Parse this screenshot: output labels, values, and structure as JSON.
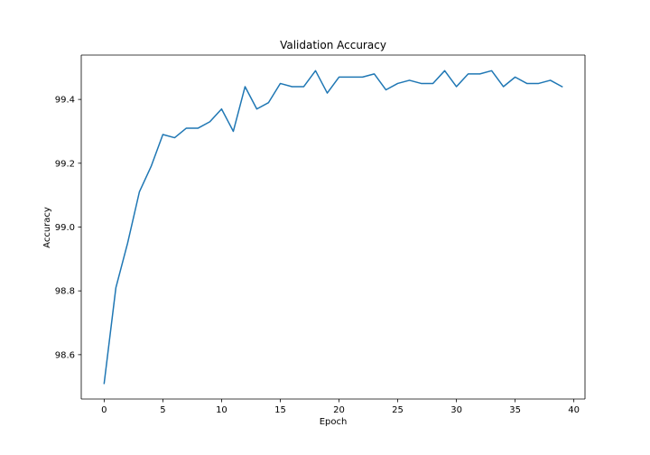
{
  "chart_data": {
    "type": "line",
    "title": "Validation Accuracy",
    "xlabel": "Epoch",
    "ylabel": "Accuracy",
    "xlim": [
      -1.95,
      40.95
    ],
    "ylim": [
      98.461,
      99.539
    ],
    "xticks": [
      0,
      5,
      10,
      15,
      20,
      25,
      30,
      35,
      40
    ],
    "yticks": [
      98.6,
      98.8,
      99.0,
      99.2,
      99.4
    ],
    "ytick_labels": [
      "98.6",
      "98.8",
      "99.0",
      "99.2",
      "99.4"
    ],
    "grid": false,
    "series": [
      {
        "name": "Validation Accuracy",
        "color": "#1f77b4",
        "x": [
          0,
          1,
          2,
          3,
          4,
          5,
          6,
          7,
          8,
          9,
          10,
          11,
          12,
          13,
          14,
          15,
          16,
          17,
          18,
          19,
          20,
          21,
          22,
          23,
          24,
          25,
          26,
          27,
          28,
          29,
          30,
          31,
          32,
          33,
          34,
          35,
          36,
          37,
          38,
          39
        ],
        "values": [
          98.51,
          98.81,
          98.95,
          99.11,
          99.19,
          99.29,
          99.28,
          99.31,
          99.31,
          99.33,
          99.37,
          99.3,
          99.44,
          99.37,
          99.39,
          99.45,
          99.44,
          99.44,
          99.49,
          99.42,
          99.47,
          99.47,
          99.47,
          99.48,
          99.43,
          99.45,
          99.46,
          99.45,
          99.45,
          99.49,
          99.44,
          99.48,
          99.48,
          99.49,
          99.44,
          99.47,
          99.45,
          99.45,
          99.46,
          99.44
        ]
      }
    ]
  }
}
